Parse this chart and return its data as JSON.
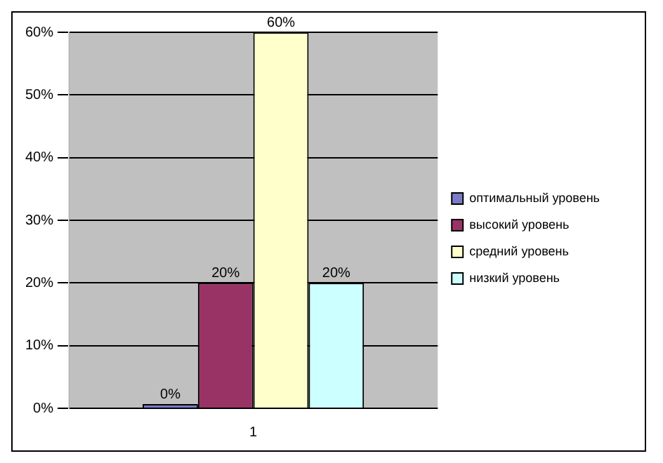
{
  "chart_data": {
    "type": "bar",
    "categories": [
      "1"
    ],
    "series": [
      {
        "name": "оптимальный уровень",
        "color": "#7b7bc8",
        "values": [
          0
        ],
        "value_labels": [
          "0%"
        ]
      },
      {
        "name": "высокий уровень",
        "color": "#993366",
        "values": [
          20
        ],
        "value_labels": [
          "20%"
        ]
      },
      {
        "name": "средний уровень",
        "color": "#ffffcc",
        "values": [
          60
        ],
        "value_labels": [
          "60%"
        ]
      },
      {
        "name": "низкий уровень",
        "color": "#ccffff",
        "values": [
          20
        ],
        "value_labels": [
          "20%"
        ]
      }
    ],
    "ylim": [
      0,
      60
    ],
    "yticks": [
      {
        "value": 0,
        "label": "0%"
      },
      {
        "value": 10,
        "label": "10%"
      },
      {
        "value": 20,
        "label": "20%"
      },
      {
        "value": 30,
        "label": "30%"
      },
      {
        "value": 40,
        "label": "40%"
      },
      {
        "value": 50,
        "label": "50%"
      },
      {
        "value": 60,
        "label": "60%"
      }
    ],
    "grid": "y",
    "legend": "right"
  }
}
